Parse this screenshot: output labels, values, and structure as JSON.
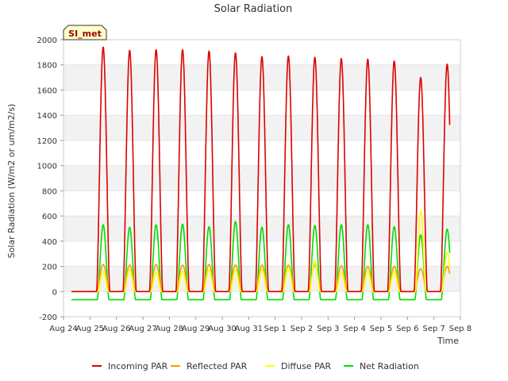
{
  "chart_data": {
    "type": "line",
    "title": "Solar Radiation",
    "xlabel": "Time",
    "ylabel": "Solar Radiation (W/m2 or um/m2/s)",
    "ylim": [
      -200,
      2000
    ],
    "yticks": [
      -200,
      0,
      200,
      400,
      600,
      800,
      1000,
      1200,
      1400,
      1600,
      1800,
      2000
    ],
    "xlim": [
      0,
      15
    ],
    "xtick_labels": [
      "Aug 24",
      "Aug 25",
      "Aug 26",
      "Aug 27",
      "Aug 28",
      "Aug 29",
      "Aug 30",
      "Aug 31",
      "Sep 1",
      "Sep 2",
      "Sep 3",
      "Sep 4",
      "Sep 5",
      "Sep 6",
      "Sep 7",
      "Sep 8"
    ],
    "annotation": "SI_met",
    "grid": "horizontal bands",
    "legend_position": "bottom",
    "day_range": [
      0.3,
      14.6
    ],
    "noon_offset": 0.5,
    "series": [
      {
        "name": "Incoming PAR",
        "color": "#dd0000",
        "night": 0,
        "halfwidth": 0.25,
        "peaks": [
          1940,
          1915,
          1920,
          1920,
          1910,
          1895,
          1865,
          1870,
          1860,
          1850,
          1845,
          1830,
          1700,
          1805
        ]
      },
      {
        "name": "Reflected PAR",
        "color": "#ff9900",
        "night": 0,
        "halfwidth": 0.24,
        "peaks": [
          215,
          210,
          215,
          210,
          215,
          210,
          210,
          210,
          210,
          205,
          200,
          200,
          180,
          200
        ]
      },
      {
        "name": "Diffuse PAR",
        "color": "#ffff00",
        "night": 0,
        "halfwidth": 0.2,
        "peaks": [
          160,
          175,
          150,
          160,
          175,
          170,
          175,
          190,
          240,
          150,
          160,
          160,
          640,
          310
        ]
      },
      {
        "name": "Net Radiation",
        "color": "#00dd00",
        "night": -65,
        "halfwidth": 0.22,
        "peaks": [
          530,
          510,
          530,
          535,
          515,
          555,
          510,
          530,
          525,
          530,
          530,
          515,
          450,
          495
        ]
      }
    ]
  }
}
